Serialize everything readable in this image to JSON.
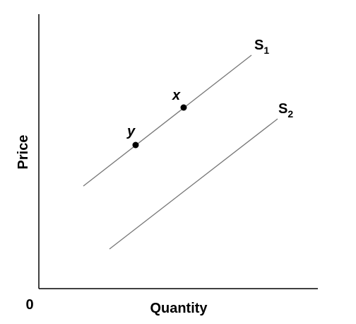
{
  "axes": {
    "y_label": "Price",
    "x_label": "Quantity",
    "origin": "0"
  },
  "curves": [
    {
      "label": "S",
      "subscript": "1"
    },
    {
      "label": "S",
      "subscript": "2"
    }
  ],
  "points": [
    {
      "label": "x"
    },
    {
      "label": "y"
    }
  ]
}
